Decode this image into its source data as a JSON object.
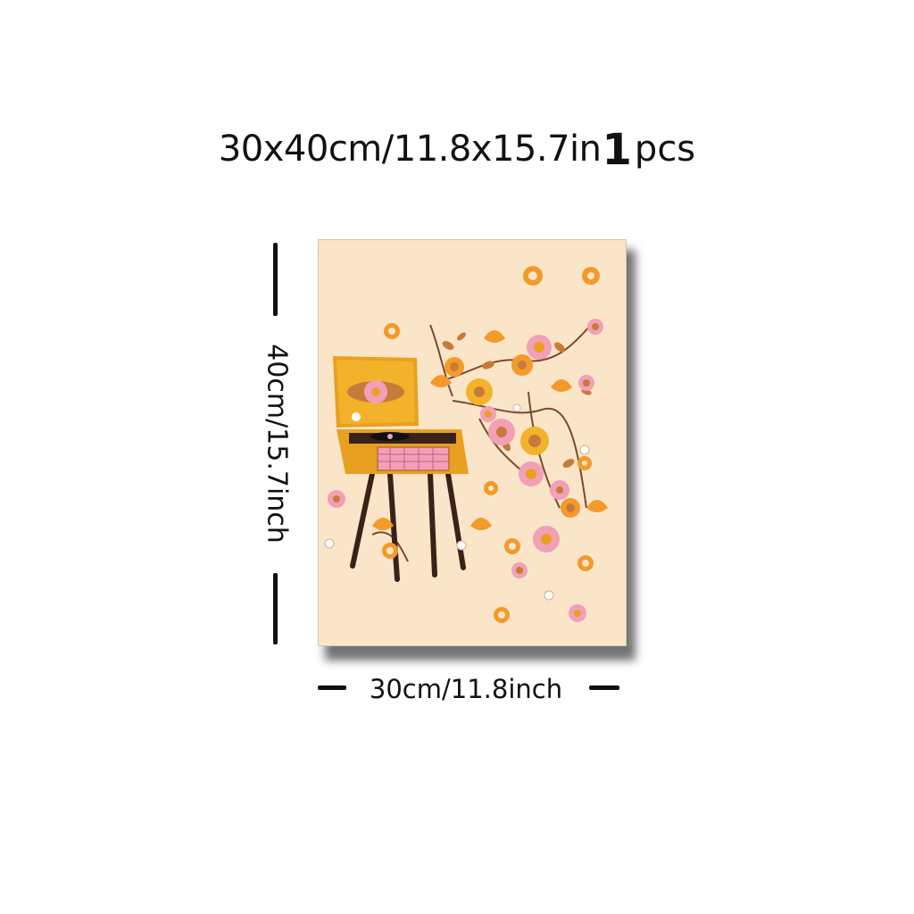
{
  "title": {
    "main": "30x40cm/11.8x15.7in",
    "quantity": "1",
    "unit": "pcs"
  },
  "dimensions": {
    "height_label": "40cm/15.7inch",
    "width_label": "30cm/11.8inch"
  },
  "artwork": {
    "subject": "retro record player with flowers",
    "colors": {
      "background": "#fbe5c9",
      "cabinet": "#f2b32a",
      "pink": "#f29fb8",
      "orange": "#f39a2a",
      "brown": "#5a3322"
    }
  }
}
